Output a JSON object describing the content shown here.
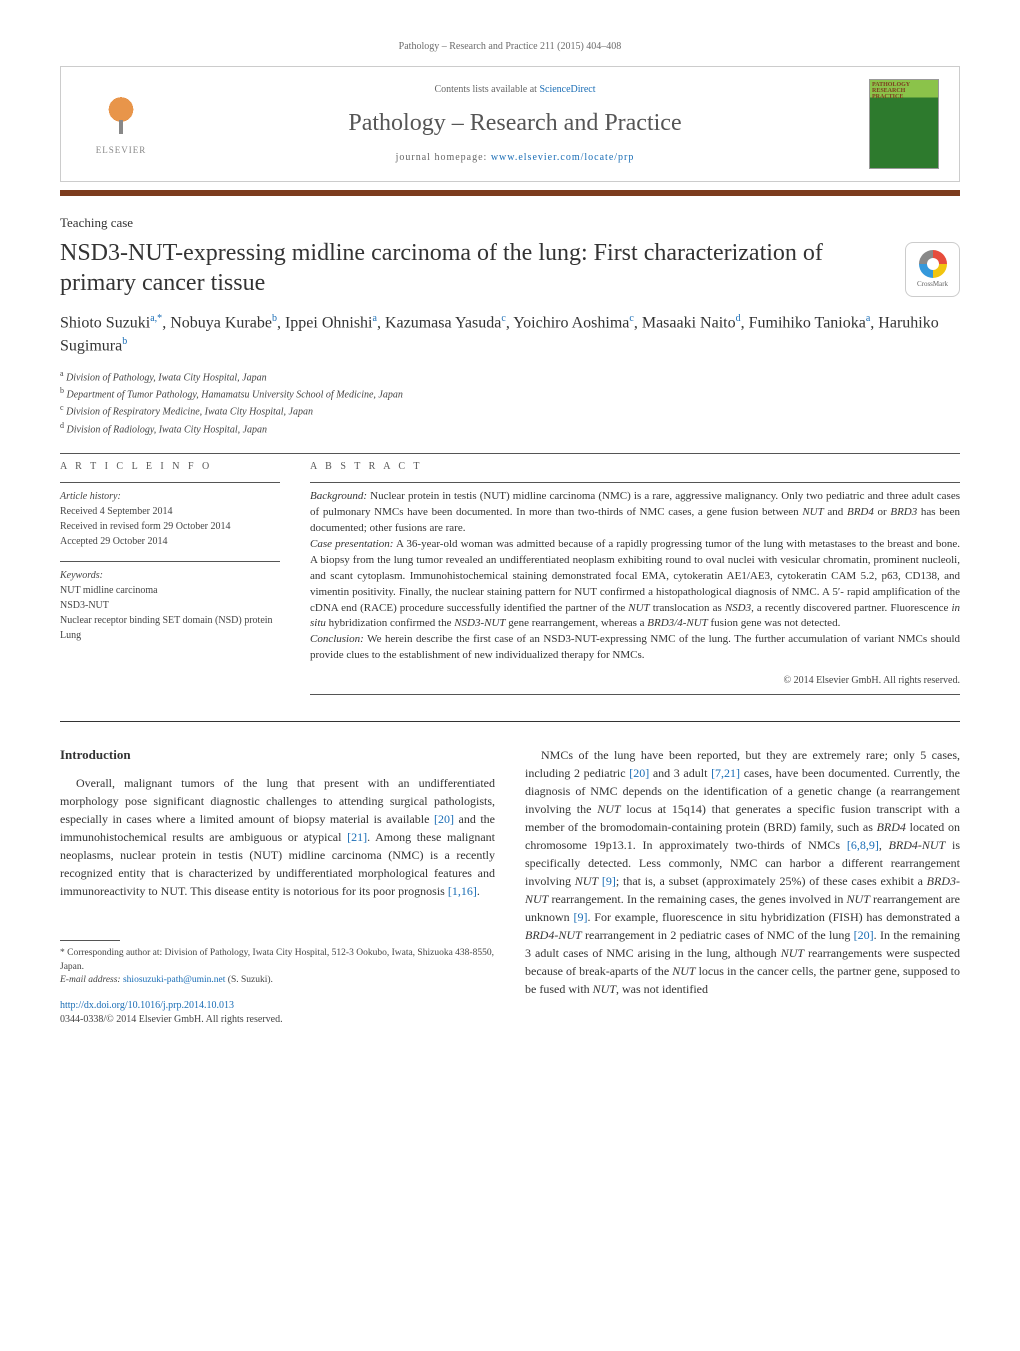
{
  "colors": {
    "link": "#1a6db5",
    "accentBar": "#7d3c1e",
    "text": "#333333",
    "muted": "#666666",
    "border": "#cccccc"
  },
  "header": {
    "citation": "Pathology – Research and Practice 211 (2015) 404–408",
    "contentsPrefix": "Contents lists available at ",
    "contentsLink": "ScienceDirect",
    "journalName": "Pathology – Research and Practice",
    "homepagePrefix": "journal homepage: ",
    "homepageUrl": "www.elsevier.com/locate/prp",
    "elsevierLabel": "ELSEVIER",
    "coverLabel": "PATHOLOGY RESEARCH PRACTICE",
    "crossmarkLabel": "CrossMark"
  },
  "article": {
    "type": "Teaching case",
    "title": "NSD3-NUT-expressing midline carcinoma of the lung: First characterization of primary cancer tissue",
    "authorsHtml": "Shioto Suzuki<sup>a,*</sup>, Nobuya Kurabe<sup>b</sup>, Ippei Ohnishi<sup>a</sup>, Kazumasa Yasuda<sup>c</sup>, Yoichiro Aoshima<sup>c</sup>, Masaaki Naito<sup>d</sup>, Fumihiko Tanioka<sup>a</sup>, Haruhiko Sugimura<sup>b</sup>",
    "affiliations": [
      {
        "sup": "a",
        "text": "Division of Pathology, Iwata City Hospital, Japan"
      },
      {
        "sup": "b",
        "text": "Department of Tumor Pathology, Hamamatsu University School of Medicine, Japan"
      },
      {
        "sup": "c",
        "text": "Division of Respiratory Medicine, Iwata City Hospital, Japan"
      },
      {
        "sup": "d",
        "text": "Division of Radiology, Iwata City Hospital, Japan"
      }
    ]
  },
  "info": {
    "sectionLabel": "a r t i c l e   i n f o",
    "historyLabel": "Article history:",
    "received": "Received 4 September 2014",
    "revised": "Received in revised form 29 October 2014",
    "accepted": "Accepted 29 October 2014",
    "keywordsLabel": "Keywords:",
    "keywords": [
      "NUT midline carcinoma",
      "NSD3-NUT",
      "Nuclear receptor binding SET domain (NSD) protein",
      "Lung"
    ]
  },
  "abstract": {
    "sectionLabel": "a b s t r a c t",
    "paragraphs": [
      {
        "runin": "Background:",
        "html": "Nuclear protein in testis (NUT) midline carcinoma (NMC) is a rare, aggressive malignancy. Only two pediatric and three adult cases of pulmonary NMCs have been documented. In more than two-thirds of NMC cases, a gene fusion between <em>NUT</em> and <em>BRD4</em> or <em>BRD3</em> has been documented; other fusions are rare."
      },
      {
        "runin": "Case presentation:",
        "html": "A 36-year-old woman was admitted because of a rapidly progressing tumor of the lung with metastases to the breast and bone. A biopsy from the lung tumor revealed an undifferentiated neoplasm exhibiting round to oval nuclei with vesicular chromatin, prominent nucleoli, and scant cytoplasm. Immunohistochemical staining demonstrated focal EMA, cytokeratin AE1/AE3, cytokeratin CAM 5.2, p63, CD138, and vimentin positivity. Finally, the nuclear staining pattern for NUT confirmed a histopathological diagnosis of NMC. A 5′- rapid amplification of the cDNA end (RACE) procedure successfully identified the partner of the <em>NUT</em> translocation as <em>NSD3</em>, a recently discovered partner. Fluorescence <em>in situ</em> hybridization confirmed the <em>NSD3-NUT</em> gene rearrangement, whereas a <em>BRD3/4-NUT</em> fusion gene was not detected."
      },
      {
        "runin": "Conclusion:",
        "html": "We herein describe the first case of an NSD3-NUT-expressing NMC of the lung. The further accumulation of variant NMCs should provide clues to the establishment of new individualized therapy for NMCs."
      }
    ],
    "copyright": "© 2014 Elsevier GmbH. All rights reserved."
  },
  "body": {
    "introHeading": "Introduction",
    "leftParagraph": "Overall, malignant tumors of the lung that present with an undifferentiated morphology pose significant diagnostic challenges to attending surgical pathologists, especially in cases where a limited amount of biopsy material is available <a class='ref' href='#'>[20]</a> and the immunohistochemical results are ambiguous or atypical <a class='ref' href='#'>[21]</a>. Among these malignant neoplasms, nuclear protein in testis (NUT) midline carcinoma (NMC) is a recently recognized entity that is characterized by undifferentiated morphological features and immunoreactivity to NUT. This disease entity is notorious for its poor prognosis <a class='ref' href='#'>[1,16]</a>.",
    "rightParagraph": "NMCs of the lung have been reported, but they are extremely rare; only 5 cases, including 2 pediatric <a class='ref' href='#'>[20]</a> and 3 adult <a class='ref' href='#'>[7,21]</a> cases, have been documented. Currently, the diagnosis of NMC depends on the identification of a genetic change (a rearrangement involving the <em>NUT</em> locus at 15q14) that generates a specific fusion transcript with a member of the bromodomain-containing protein (BRD) family, such as <em>BRD4</em> located on chromosome 19p13.1. In approximately two-thirds of NMCs <a class='ref' href='#'>[6,8,9]</a>, <em>BRD4-NUT</em> is specifically detected. Less commonly, NMC can harbor a different rearrangement involving <em>NUT</em> <a class='ref' href='#'>[9]</a>; that is, a subset (approximately 25%) of these cases exhibit a <em>BRD3-NUT</em> rearrangement. In the remaining cases, the genes involved in <em>NUT</em> rearrangement are unknown <a class='ref' href='#'>[9]</a>. For example, fluorescence in situ hybridization (FISH) has demonstrated a <em>BRD4-NUT</em> rearrangement in 2 pediatric cases of NMC of the lung <a class='ref' href='#'>[20]</a>. In the remaining 3 adult cases of NMC arising in the lung, although <em>NUT</em> rearrangements were suspected because of break-aparts of the <em>NUT</em> locus in the cancer cells, the partner gene, supposed to be fused with <em>NUT</em>, was not identified"
  },
  "footnote": {
    "corresponding": "* Corresponding author at: Division of Pathology, Iwata City Hospital, 512-3 Ookubo, Iwata, Shizuoka 438-8550, Japan.",
    "emailLabel": "E-mail address:",
    "email": "shiosuzuki-path@umin.net",
    "emailSuffix": "(S. Suzuki)."
  },
  "doi": {
    "url": "http://dx.doi.org/10.1016/j.prp.2014.10.013",
    "issn": "0344-0338/© 2014 Elsevier GmbH. All rights reserved."
  }
}
